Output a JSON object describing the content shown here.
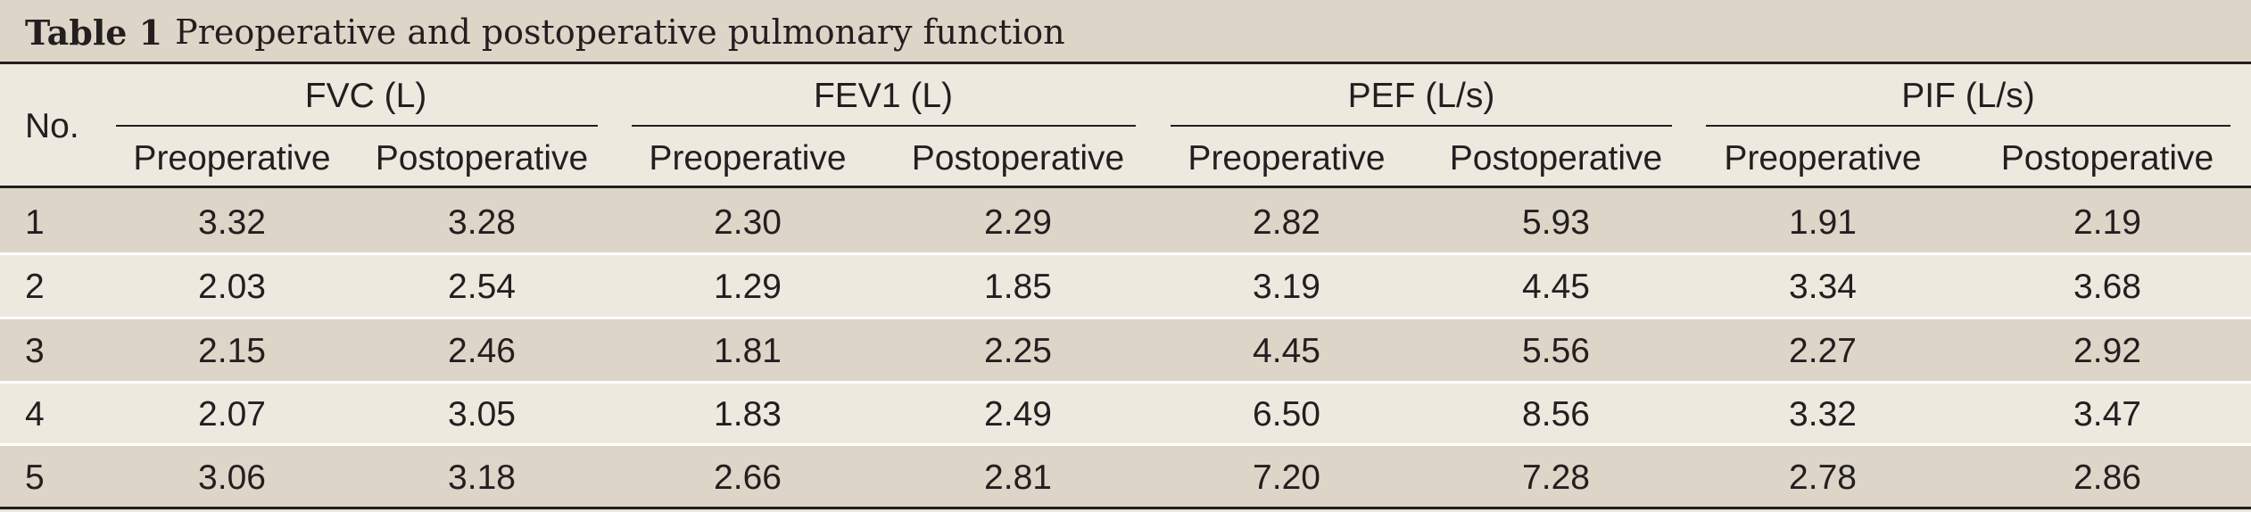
{
  "table": {
    "title_label": "Table 1",
    "title_text": "Preoperative and postoperative pulmonary function",
    "row_header": "No.",
    "groups": [
      {
        "name": "FVC (L)",
        "sub": [
          "Preoperative",
          "Postoperative"
        ]
      },
      {
        "name": "FEV1 (L)",
        "sub": [
          "Preoperative",
          "Postoperative"
        ]
      },
      {
        "name": "PEF (L/s)",
        "sub": [
          "Preoperative",
          "Postoperative"
        ]
      },
      {
        "name": "PIF (L/s)",
        "sub": [
          "Preoperative",
          "Postoperative"
        ]
      }
    ],
    "rows": [
      {
        "no": "1",
        "values": [
          "3.32",
          "3.28",
          "2.30",
          "2.29",
          "2.82",
          "5.93",
          "1.91",
          "2.19"
        ]
      },
      {
        "no": "2",
        "values": [
          "2.03",
          "2.54",
          "1.29",
          "1.85",
          "3.19",
          "4.45",
          "3.34",
          "3.68"
        ]
      },
      {
        "no": "3",
        "values": [
          "2.15",
          "2.46",
          "1.81",
          "2.25",
          "4.45",
          "5.56",
          "2.27",
          "2.92"
        ]
      },
      {
        "no": "4",
        "values": [
          "2.07",
          "3.05",
          "1.83",
          "2.49",
          "6.50",
          "8.56",
          "3.32",
          "3.47"
        ]
      },
      {
        "no": "5",
        "values": [
          "3.06",
          "3.18",
          "2.66",
          "2.81",
          "7.20",
          "7.28",
          "2.78",
          "2.86"
        ]
      }
    ]
  },
  "colors": {
    "band_dark": "#ddd5c7",
    "band_light": "#ede9df",
    "text": "#231f20"
  }
}
